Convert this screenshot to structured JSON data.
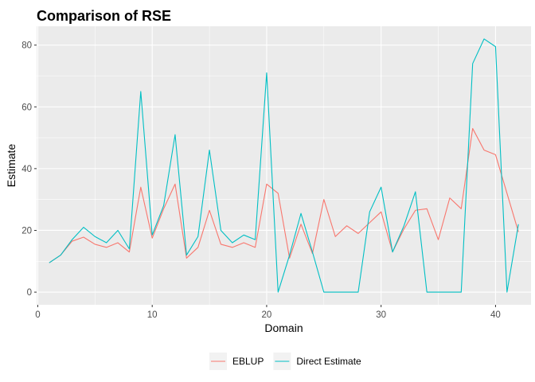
{
  "chart_data": {
    "type": "line",
    "title": "Comparison of RSE",
    "xlabel": "Domain",
    "ylabel": "Estimate",
    "xlim": [
      -0.1,
      43.1
    ],
    "ylim": [
      -4.1,
      86.1
    ],
    "x_ticks": [
      0,
      10,
      20,
      30,
      40
    ],
    "y_ticks": [
      0,
      20,
      40,
      60,
      80
    ],
    "grid": true,
    "legend_position": "bottom",
    "x": [
      1,
      2,
      3,
      4,
      5,
      6,
      7,
      8,
      9,
      10,
      11,
      12,
      13,
      14,
      15,
      16,
      17,
      18,
      19,
      20,
      21,
      22,
      23,
      24,
      25,
      26,
      27,
      28,
      29,
      30,
      31,
      32,
      33,
      34,
      35,
      36,
      37,
      38,
      39,
      40,
      41,
      42
    ],
    "series": [
      {
        "name": "EBLUP",
        "color": "#F8766D",
        "values": [
          9.5,
          12,
          16.5,
          17.8,
          15.5,
          14.5,
          16,
          13,
          34,
          17.5,
          27,
          35,
          11,
          14.5,
          26.5,
          15.5,
          14.5,
          16,
          14.5,
          35,
          32,
          11,
          22,
          12.5,
          30,
          18,
          21.5,
          19,
          22.5,
          26,
          13,
          20.5,
          26.5,
          27,
          17,
          30.5,
          27,
          53,
          46,
          44.5,
          32,
          19.5
        ]
      },
      {
        "name": "Direct Estimate",
        "color": "#00BFC4",
        "values": [
          9.5,
          12,
          17,
          21,
          18,
          16,
          20,
          14,
          65,
          18.5,
          28,
          51,
          12,
          18,
          46,
          20,
          16,
          18.5,
          17,
          71,
          0,
          12,
          25.5,
          13,
          0,
          0,
          0,
          0,
          26,
          34,
          13,
          21.5,
          32.5,
          0,
          0,
          0,
          0,
          74,
          82,
          79.5,
          0,
          22
        ]
      }
    ]
  }
}
